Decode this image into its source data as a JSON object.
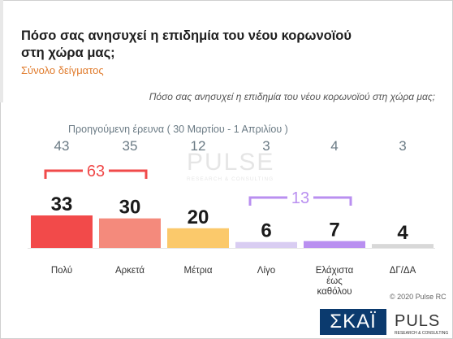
{
  "title": "Πόσο σας ανησυχεί η επιδημία του νέου κορωνοϊού στη χώρα μας;",
  "subtitle": "Σύνολο δείγματος",
  "question": "Πόσο σας ανησυχεί η επιδημία του νέου κορωνοϊού στη χώρα μας;",
  "previous_survey_label": "Προηγούμενη έρευνα  ( 30 Μαρτίου - 1 Απριλίου )",
  "copyright": "© 2020 Pulse RC",
  "watermark": {
    "name": "PULSE",
    "sub": "RESEARCH & CONSULTING"
  },
  "logos": {
    "skai": "ΣΚΑΪ",
    "pulse": "PULS",
    "pulse_sub": "RESEARCH & CONSULTING"
  },
  "chart_data": {
    "type": "bar",
    "categories": [
      "Πολύ",
      "Αρκετά",
      "Μέτρια",
      "Λίγο",
      "Ελάχιστα έως καθόλου",
      "ΔΓ/ΔΑ"
    ],
    "category_lines": [
      [
        "Πολύ"
      ],
      [
        "Αρκετά"
      ],
      [
        "Μέτρια"
      ],
      [
        "Λίγο"
      ],
      [
        "Ελάχιστα",
        "έως",
        "καθόλου"
      ],
      [
        "ΔΓ/ΔΑ"
      ]
    ],
    "values": [
      33,
      30,
      20,
      6,
      7,
      4
    ],
    "previous_values": [
      43,
      35,
      12,
      3,
      4,
      3
    ],
    "colors": [
      "#f24a4a",
      "#f48a7c",
      "#fbc96b",
      "#d9cdf2",
      "#b98ff0",
      "#d8d8d8"
    ],
    "groups": [
      {
        "value": 63,
        "categories": [
          "Πολύ",
          "Αρκετά"
        ],
        "color": "#f04a4a"
      },
      {
        "value": 13,
        "categories": [
          "Λίγο",
          "Ελάχιστα έως καθόλου"
        ],
        "color": "#b98ff0"
      }
    ],
    "ylim": [
      0,
      43
    ]
  }
}
